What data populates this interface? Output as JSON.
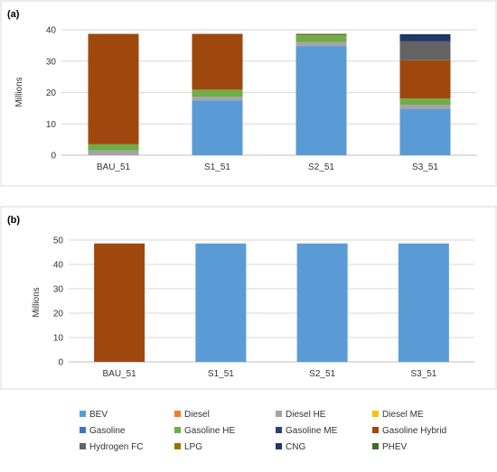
{
  "chart_data": [
    {
      "type": "bar",
      "stacked": true,
      "panel_label": "(a)",
      "ylabel": "Millions",
      "ylim": [
        0,
        40
      ],
      "yticks": [
        0,
        10,
        20,
        30,
        40
      ],
      "grid": true,
      "categories": [
        "BAU_51",
        "S1_51",
        "S2_51",
        "S3_51"
      ],
      "series": [
        {
          "name": "BEV",
          "color": "#5b9bd5",
          "values": [
            0,
            17.5,
            34.8,
            14.8
          ]
        },
        {
          "name": "Diesel",
          "color": "#ed7d31",
          "values": [
            0,
            0,
            0,
            0
          ]
        },
        {
          "name": "Diesel HE",
          "color": "#a5a5a5",
          "values": [
            1.5,
            1.2,
            1.3,
            1.3
          ]
        },
        {
          "name": "Diesel ME",
          "color": "#ffc000",
          "values": [
            0,
            0,
            0,
            0
          ]
        },
        {
          "name": "Gasoline",
          "color": "#4472c4",
          "values": [
            0,
            0,
            0,
            0
          ]
        },
        {
          "name": "Gasoline HE",
          "color": "#70ad47",
          "values": [
            2.0,
            2.2,
            2.1,
            2.0
          ]
        },
        {
          "name": "Gasoline ME",
          "color": "#264478",
          "values": [
            0,
            0,
            0,
            0
          ]
        },
        {
          "name": "Gasoline Hybrid",
          "color": "#9e480e",
          "values": [
            35.2,
            17.8,
            0,
            12.2
          ]
        },
        {
          "name": "Hydrogen FC",
          "color": "#636363",
          "values": [
            0,
            0,
            0,
            6.0
          ]
        },
        {
          "name": "LPG",
          "color": "#997300",
          "values": [
            0,
            0,
            0.2,
            0
          ]
        },
        {
          "name": "CNG",
          "color": "#1f3864",
          "values": [
            0,
            0,
            0,
            2.3
          ]
        },
        {
          "name": "PHEV",
          "color": "#43682b",
          "values": [
            0,
            0,
            0.3,
            0
          ]
        }
      ]
    },
    {
      "type": "bar",
      "stacked": true,
      "panel_label": "(b)",
      "ylabel": "Millions",
      "ylim": [
        0,
        50
      ],
      "yticks": [
        0,
        10,
        20,
        30,
        40,
        50
      ],
      "grid": true,
      "categories": [
        "BAU_51",
        "S1_51",
        "S2_51",
        "S3_51"
      ],
      "series": [
        {
          "name": "BEV",
          "color": "#5b9bd5",
          "values": [
            0,
            48.6,
            48.6,
            48.6
          ]
        },
        {
          "name": "Gasoline Hybrid",
          "color": "#9e480e",
          "values": [
            48.6,
            0,
            0,
            0
          ]
        }
      ]
    }
  ],
  "legend": {
    "placement": "bottom",
    "columns": 4,
    "items": [
      {
        "name": "BEV",
        "color": "#5b9bd5"
      },
      {
        "name": "Diesel",
        "color": "#ed7d31"
      },
      {
        "name": "Diesel HE",
        "color": "#a5a5a5"
      },
      {
        "name": "Diesel ME",
        "color": "#ffc000"
      },
      {
        "name": "Gasoline",
        "color": "#4472c4"
      },
      {
        "name": "Gasoline HE",
        "color": "#70ad47"
      },
      {
        "name": "Gasoline ME",
        "color": "#264478"
      },
      {
        "name": "Gasoline Hybrid",
        "color": "#9e480e"
      },
      {
        "name": "Hydrogen FC",
        "color": "#636363"
      },
      {
        "name": "LPG",
        "color": "#997300"
      },
      {
        "name": "CNG",
        "color": "#1f3864"
      },
      {
        "name": "PHEV",
        "color": "#43682b"
      }
    ]
  }
}
